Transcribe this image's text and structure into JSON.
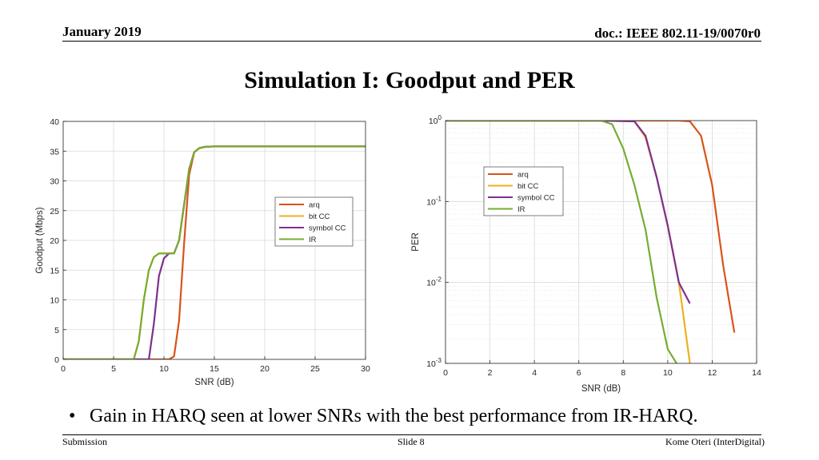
{
  "header": {
    "date": "January 2019",
    "doc": "doc.: IEEE 802.11-19/0070r0"
  },
  "slide_title": "Simulation I: Goodput and PER",
  "bullet": "Gain in HARQ seen at lower SNRs with the best performance from IR-HARQ.",
  "footer": {
    "left": "Submission",
    "center": "Slide 8",
    "right": "Kome Oteri (InterDigital)"
  },
  "chart_data": [
    {
      "type": "line",
      "xlabel": "SNR (dB)",
      "ylabel": "Goodput (Mbps)",
      "xlim": [
        0,
        30
      ],
      "ylim": [
        0,
        40
      ],
      "xticks": [
        0,
        5,
        10,
        15,
        20,
        25,
        30
      ],
      "yticks": [
        0,
        5,
        10,
        15,
        20,
        25,
        30,
        35,
        40
      ],
      "grid": true,
      "legend_position": "center-right",
      "series": [
        {
          "name": "arq",
          "color": "#d95319",
          "x": [
            0,
            10.5,
            11,
            11.5,
            12,
            12.5,
            13,
            13.5,
            14,
            15,
            16,
            20,
            25,
            30
          ],
          "y": [
            0,
            0,
            0.5,
            6.5,
            19.5,
            31,
            34.8,
            35.5,
            35.7,
            35.8,
            35.8,
            35.8,
            35.8,
            35.8
          ]
        },
        {
          "name": "bit CC",
          "color": "#edb120",
          "x": [
            0,
            7,
            7.5,
            8,
            8.5,
            9,
            9.5,
            10,
            10.5,
            11,
            11.5,
            12,
            12.5,
            13,
            13.5,
            14,
            15,
            16,
            20,
            25,
            30
          ],
          "y": [
            0,
            0,
            3,
            10,
            15,
            17.2,
            17.8,
            17.8,
            17.8,
            17.8,
            20,
            26,
            32,
            34.8,
            35.5,
            35.7,
            35.8,
            35.8,
            35.8,
            35.8,
            35.8
          ]
        },
        {
          "name": "symbol CC",
          "color": "#7e2f8e",
          "x": [
            0,
            8.5,
            9,
            9.5,
            10,
            10.5,
            11,
            11.5,
            12,
            12.5,
            13,
            13.5,
            14,
            15,
            16,
            20,
            25,
            30
          ],
          "y": [
            0,
            0,
            6,
            14,
            17,
            17.8,
            17.8,
            20,
            26,
            32,
            34.8,
            35.5,
            35.7,
            35.8,
            35.8,
            35.8,
            35.8,
            35.8
          ]
        },
        {
          "name": "IR",
          "color": "#77ac30",
          "x": [
            0,
            7,
            7.5,
            8,
            8.5,
            9,
            9.5,
            10,
            10.5,
            11,
            11.5,
            12,
            12.5,
            13,
            13.5,
            14,
            15,
            16,
            20,
            25,
            30
          ],
          "y": [
            0,
            0,
            3,
            10,
            15,
            17.2,
            17.8,
            17.8,
            17.8,
            17.8,
            20,
            26,
            32,
            34.8,
            35.5,
            35.7,
            35.8,
            35.8,
            35.8,
            35.8,
            35.8
          ]
        }
      ]
    },
    {
      "type": "line",
      "xlabel": "SNR (dB)",
      "ylabel": "PER",
      "y_scale": "log",
      "xlim": [
        0,
        14
      ],
      "ylim": [
        0.001,
        1
      ],
      "xticks": [
        0,
        2,
        4,
        6,
        8,
        10,
        12,
        14
      ],
      "yticks": [
        0.001,
        0.01,
        0.1,
        1
      ],
      "ytick_labels": [
        "10",
        "10",
        "10",
        "10"
      ],
      "ytick_exponents": [
        "-3",
        "-2",
        "-1",
        "0"
      ],
      "grid": true,
      "legend_position": "top-right",
      "series": [
        {
          "name": "arq",
          "color": "#d95319",
          "x": [
            0,
            7,
            10,
            10.5,
            11,
            11.5,
            12,
            12.5,
            13
          ],
          "y": [
            1,
            1,
            1,
            1,
            0.98,
            0.65,
            0.16,
            0.016,
            0.0024
          ]
        },
        {
          "name": "bit CC",
          "color": "#edb120",
          "x": [
            0,
            7,
            8.5,
            9,
            9.5,
            10,
            10.5,
            11
          ],
          "y": [
            1,
            1,
            0.98,
            0.62,
            0.2,
            0.05,
            0.01,
            0.001
          ]
        },
        {
          "name": "symbol CC",
          "color": "#7e2f8e",
          "x": [
            0,
            7,
            8.5,
            9,
            9.5,
            10,
            10.5,
            11
          ],
          "y": [
            1,
            1,
            0.98,
            0.65,
            0.2,
            0.05,
            0.01,
            0.0055
          ]
        },
        {
          "name": "IR",
          "color": "#77ac30",
          "x": [
            0,
            7,
            7.5,
            8,
            8.5,
            9,
            9.5,
            10,
            10.5
          ],
          "y": [
            1,
            1,
            0.9,
            0.45,
            0.16,
            0.045,
            0.0065,
            0.0015,
            0.0009
          ]
        }
      ]
    }
  ]
}
